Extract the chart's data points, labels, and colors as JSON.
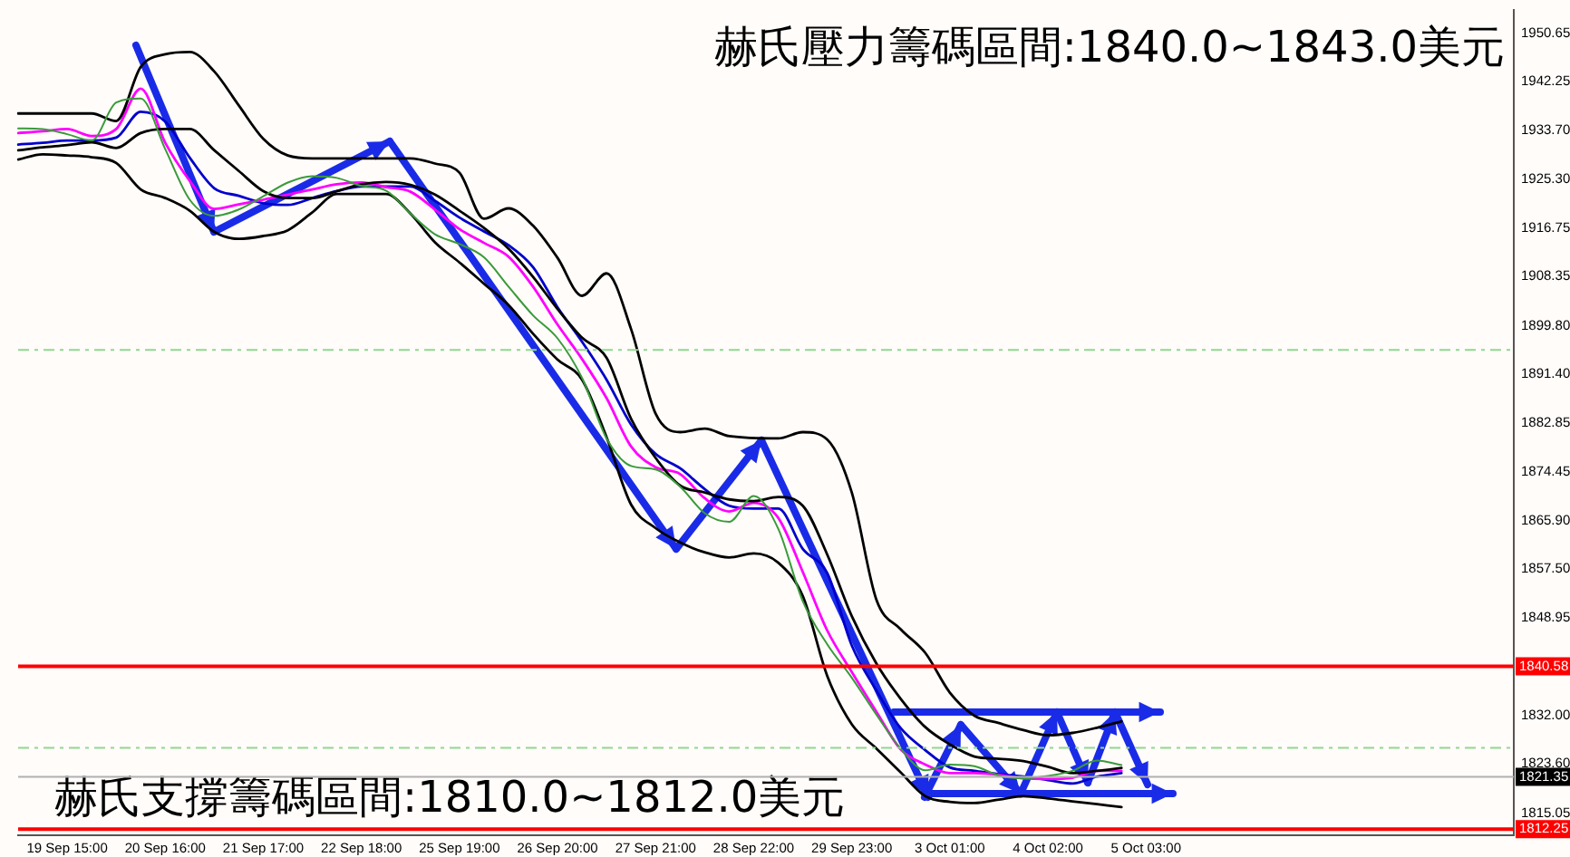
{
  "chart_data": {
    "type": "line",
    "annotations": [
      "赫氏壓力籌碼區間:1840.0~1843.0美元",
      "赫氏支撐籌碼區間:1810.0~1812.0美元"
    ],
    "categories": [
      null,
      null,
      "19 Sep 15:00",
      null,
      null,
      null,
      "20 Sep 16:00",
      null,
      null,
      null,
      "21 Sep 17:00",
      null,
      null,
      null,
      "22 Sep 18:00",
      null,
      null,
      null,
      "25 Sep 19:00",
      null,
      null,
      null,
      "26 Sep 20:00",
      null,
      null,
      null,
      "27 Sep 21:00",
      null,
      null,
      null,
      "28 Sep 22:00",
      null,
      null,
      null,
      "29 Sep 23:00",
      null,
      null,
      null,
      "3 Oct 01:00",
      null,
      null,
      null,
      "4 Oct 02:00",
      null,
      null,
      null,
      "5 Oct 03:00",
      null,
      null,
      null,
      null,
      null,
      null,
      null,
      null,
      null,
      null,
      null,
      null,
      null,
      null,
      null
    ],
    "ylim": [
      1811.2,
      1954.7
    ],
    "yticks": [
      {
        "value": 1950.65,
        "label": "1950.65"
      },
      {
        "value": 1942.25,
        "label": "1942.25"
      },
      {
        "value": 1933.7,
        "label": "1933.70"
      },
      {
        "value": 1925.3,
        "label": "1925.30"
      },
      {
        "value": 1916.75,
        "label": "1916.75"
      },
      {
        "value": 1908.35,
        "label": "1908.35"
      },
      {
        "value": 1899.8,
        "label": "1899.80"
      },
      {
        "value": 1891.4,
        "label": "1891.40"
      },
      {
        "value": 1882.85,
        "label": "1882.85"
      },
      {
        "value": 1874.45,
        "label": "1874.45"
      },
      {
        "value": 1865.9,
        "label": "1865.90"
      },
      {
        "value": 1857.5,
        "label": "1857.50"
      },
      {
        "value": 1848.95,
        "label": "1848.95"
      },
      {
        "value": 1832,
        "label": "1832.00"
      },
      {
        "value": 1823.6,
        "label": "1823.60"
      },
      {
        "value": 1815.05,
        "label": "1815.05"
      }
    ],
    "grid": false,
    "legend": false,
    "marker": "none",
    "line_style": "solid",
    "ref_lines": [
      {
        "axis": "y",
        "value": 1840.58,
        "label": "1840.58",
        "color": "#ff0000"
      },
      {
        "axis": "y",
        "value": 1812.25,
        "label": "1812.25",
        "color": "#ff0000"
      },
      {
        "axis": "y",
        "value": 1821.35,
        "label": "1821.35",
        "color": "#b0b0b0"
      },
      {
        "axis": "y",
        "value": 1895.6,
        "label": null,
        "color": "#90d890",
        "line_style": "dashed"
      },
      {
        "axis": "y",
        "value": 1826.4,
        "label": null,
        "color": "#90d890",
        "line_style": "dashed"
      }
    ],
    "series": [
      {
        "color": "#3a9a3a",
        "values": [
          1934.1,
          1934.0,
          1933.1,
          1932.0,
          1938.6,
          1939.3,
          1930.5,
          1921.7,
          1918.9,
          1920.0,
          1922.3,
          1924.7,
          1925.8,
          1925.5,
          1924.1,
          1923.3,
          1919.3,
          1915.7,
          1914.0,
          1911.7,
          1906.6,
          1901.6,
          1897.6,
          1890.7,
          1880.2,
          1875.4,
          1874.8,
          1871.8,
          1867.2,
          1865.7,
          1870.2,
          1864.5,
          1851.9,
          1844.4,
          1838.6,
          1832.2,
          1826.2,
          1822.5,
          1823.5,
          1823.2,
          1821.6,
          1821.1,
          1821.5,
          1822.4,
          1824.2,
          1823.4,
          null,
          null,
          null,
          null,
          null,
          null,
          null,
          null,
          null,
          null,
          null,
          null,
          null,
          null,
          null,
          null
        ]
      },
      {
        "color": "#000000",
        "values": [
          1936.7,
          1936.7,
          1936.7,
          1936.7,
          1935.4,
          1944.8,
          1947.0,
          1947.4,
          1944.0,
          1938.1,
          1932.3,
          1929.4,
          1928.9,
          1928.9,
          1928.9,
          1928.9,
          1928.9,
          1928.0,
          1926.4,
          1918.4,
          1920.2,
          1917.2,
          1911.6,
          1905.0,
          1908.9,
          1899.2,
          1884.5,
          1881.3,
          1881.9,
          1880.6,
          null,
          1880.2,
          1881.3,
          1880.0,
          1870.8,
          1852.2,
          1847.0,
          1842.9,
          1836.0,
          1832.0,
          1830.7,
          1829.5,
          1828.6,
          1829.0,
          1829.9,
          1831.0,
          null,
          null,
          null,
          null,
          null,
          null,
          null,
          null,
          null,
          null,
          null,
          null,
          null,
          null,
          null,
          null
        ]
      },
      {
        "color": "#000000",
        "values": [
          1930.3,
          1930.8,
          1931.2,
          1931.7,
          1930.7,
          1933.3,
          1934,
          1934,
          1930.3,
          1926.7,
          1923.2,
          1922,
          1922,
          1923.2,
          1924.4,
          1924.8,
          1924.3,
          1922.6,
          1919.8,
          1916.8,
          1913.2,
          1908.3,
          1902.7,
          1897.7,
          1894.2,
          1883.6,
          1876.8,
          1872,
          1870.8,
          1869.6,
          1869.3,
          1870,
          1868.5,
          1860,
          1849.3,
          1841.1,
          1834.9,
          1830,
          1827,
          1824.9,
          1824.5,
          1824.1,
          1823.1,
          1822,
          1822.4,
          1822.9,
          null,
          null,
          null,
          null,
          null,
          null,
          null,
          null,
          null,
          null,
          null,
          null,
          null,
          null,
          null,
          null
        ]
      },
      {
        "color": "#000000",
        "values": [
          1928.7,
          1929.6,
          1929.4,
          1929.1,
          1928.1,
          1923.5,
          1922.0,
          1919.8,
          1916.1,
          1914.9,
          1915.4,
          1916.4,
          1919.5,
          1922.7,
          1922.7,
          1922.7,
          1919.3,
          1914.3,
          1910.8,
          1907.1,
          1903.4,
          1898.4,
          1893.9,
          1890.4,
          1880.4,
          1868.7,
          1864.6,
          1862.1,
          1860.4,
          1859.5,
          1860.2,
          1858.6,
          1852.8,
          1838.9,
          1830.5,
          1826.3,
          1822.1,
          1818.0,
          1817.0,
          1816.8,
          1817.4,
          1818.0,
          1817.6,
          1817.1,
          1816.6,
          1816.1,
          null,
          null,
          null,
          null,
          null,
          null,
          null,
          null,
          null,
          null,
          null,
          null,
          null,
          null,
          null,
          null
        ]
      },
      {
        "color": "#ff00ff",
        "values": [
          1933.3,
          1933.6,
          1934,
          1932.8,
          1934,
          1941,
          1931.6,
          1925,
          1920.1,
          1920.9,
          1921.7,
          1922.6,
          1923.5,
          1924.4,
          1924.7,
          1923.9,
          1923.1,
          1920,
          1916.6,
          1914.2,
          1911.8,
          1906.6,
          1900,
          1894,
          1887.2,
          1878.8,
          1875.2,
          1874,
          1869.8,
          1867.5,
          1869,
          1866.4,
          1857,
          1846.8,
          1839.6,
          1832.7,
          1826.1,
          1823.5,
          1822,
          1822,
          1821.7,
          1821.1,
          1821,
          1821.2,
          1822.4,
          1822.4,
          null,
          null,
          null,
          null,
          null,
          null,
          null,
          null,
          null,
          null,
          null,
          null,
          null,
          null,
          null,
          null
        ]
      },
      {
        "color": "#0000cc",
        "values": [
          1931.3,
          1931.6,
          1932,
          1932,
          1932.5,
          1937,
          1935.3,
          1929,
          1923.7,
          1922.4,
          1921.1,
          1920.8,
          1922,
          1923.2,
          1924,
          1924,
          1924,
          1921.5,
          1918.6,
          1916.2,
          1913.8,
          1910,
          1903,
          1897,
          1890.4,
          1882.6,
          1877.5,
          1875,
          1871.4,
          1868.5,
          1868,
          1868,
          1861,
          1856.8,
          1844.2,
          1836.4,
          1829.8,
          1826,
          1823,
          1822.4,
          1821.8,
          1821.4,
          1820.8,
          1820.2,
          1821.4,
          1822,
          null,
          null,
          null,
          null,
          null,
          null,
          null,
          null,
          null,
          null,
          null,
          null,
          null,
          null,
          null,
          null
        ]
      }
    ]
  }
}
